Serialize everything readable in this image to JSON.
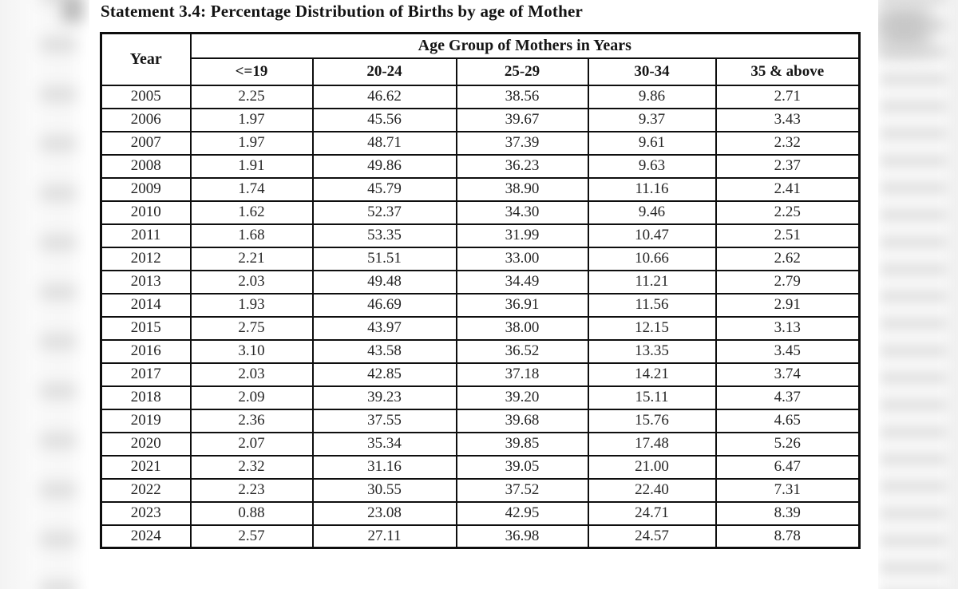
{
  "title": "Statement 3.4: Percentage Distribution of Births by age of Mother",
  "table": {
    "corner_header": "Year",
    "group_header": "Age Group of Mothers in Years",
    "age_columns": [
      "<=19",
      "20-24",
      "25-29",
      "30-34",
      "35 & above"
    ],
    "rows": [
      [
        "2005",
        "2.25",
        "46.62",
        "38.56",
        "9.86",
        "2.71"
      ],
      [
        "2006",
        "1.97",
        "45.56",
        "39.67",
        "9.37",
        "3.43"
      ],
      [
        "2007",
        "1.97",
        "48.71",
        "37.39",
        "9.61",
        "2.32"
      ],
      [
        "2008",
        "1.91",
        "49.86",
        "36.23",
        "9.63",
        "2.37"
      ],
      [
        "2009",
        "1.74",
        "45.79",
        "38.90",
        "11.16",
        "2.41"
      ],
      [
        "2010",
        "1.62",
        "52.37",
        "34.30",
        "9.46",
        "2.25"
      ],
      [
        "2011",
        "1.68",
        "53.35",
        "31.99",
        "10.47",
        "2.51"
      ],
      [
        "2012",
        "2.21",
        "51.51",
        "33.00",
        "10.66",
        "2.62"
      ],
      [
        "2013",
        "2.03",
        "49.48",
        "34.49",
        "11.21",
        "2.79"
      ],
      [
        "2014",
        "1.93",
        "46.69",
        "36.91",
        "11.56",
        "2.91"
      ],
      [
        "2015",
        "2.75",
        "43.97",
        "38.00",
        "12.15",
        "3.13"
      ],
      [
        "2016",
        "3.10",
        "43.58",
        "36.52",
        "13.35",
        "3.45"
      ],
      [
        "2017",
        "2.03",
        "42.85",
        "37.18",
        "14.21",
        "3.74"
      ],
      [
        "2018",
        "2.09",
        "39.23",
        "39.20",
        "15.11",
        "4.37"
      ],
      [
        "2019",
        "2.36",
        "37.55",
        "39.68",
        "15.76",
        "4.65"
      ],
      [
        "2020",
        "2.07",
        "35.34",
        "39.85",
        "17.48",
        "5.26"
      ],
      [
        "2021",
        "2.32",
        "31.16",
        "39.05",
        "21.00",
        "6.47"
      ],
      [
        "2022",
        "2.23",
        "30.55",
        "37.52",
        "22.40",
        "7.31"
      ],
      [
        "2023",
        "0.88",
        "23.08",
        "42.95",
        "24.71",
        "8.39"
      ],
      [
        "2024",
        "2.57",
        "27.11",
        "36.98",
        "24.57",
        "8.78"
      ]
    ]
  },
  "chart_data": {
    "type": "table",
    "title": "Statement 3.4: Percentage Distribution of Births by age of Mother",
    "columns": [
      "Year",
      "<=19",
      "20-24",
      "25-29",
      "30-34",
      "35 & above"
    ],
    "x": [
      2005,
      2006,
      2007,
      2008,
      2009,
      2010,
      2011,
      2012,
      2013,
      2014,
      2015,
      2016,
      2017,
      2018,
      2019,
      2020,
      2021,
      2022,
      2023,
      2024
    ],
    "series": [
      {
        "name": "<=19",
        "values": [
          2.25,
          1.97,
          1.97,
          1.91,
          1.74,
          1.62,
          1.68,
          2.21,
          2.03,
          1.93,
          2.75,
          3.1,
          2.03,
          2.09,
          2.36,
          2.07,
          2.32,
          2.23,
          0.88,
          2.57
        ]
      },
      {
        "name": "20-24",
        "values": [
          46.62,
          45.56,
          48.71,
          49.86,
          45.79,
          52.37,
          53.35,
          51.51,
          49.48,
          46.69,
          43.97,
          43.58,
          42.85,
          39.23,
          37.55,
          35.34,
          31.16,
          30.55,
          23.08,
          27.11
        ]
      },
      {
        "name": "25-29",
        "values": [
          38.56,
          39.67,
          37.39,
          36.23,
          38.9,
          34.3,
          31.99,
          33.0,
          34.49,
          36.91,
          38.0,
          36.52,
          37.18,
          39.2,
          39.68,
          39.85,
          39.05,
          37.52,
          42.95,
          36.98
        ]
      },
      {
        "name": "30-34",
        "values": [
          9.86,
          9.37,
          9.61,
          9.63,
          11.16,
          9.46,
          10.47,
          10.66,
          11.21,
          11.56,
          12.15,
          13.35,
          14.21,
          15.11,
          15.76,
          17.48,
          21.0,
          22.4,
          24.71,
          24.57
        ]
      },
      {
        "name": "35 & above",
        "values": [
          2.71,
          3.43,
          2.32,
          2.37,
          2.41,
          2.25,
          2.51,
          2.62,
          2.79,
          2.91,
          3.13,
          3.45,
          3.74,
          4.37,
          4.65,
          5.26,
          6.47,
          7.31,
          8.39,
          8.78
        ]
      }
    ]
  }
}
